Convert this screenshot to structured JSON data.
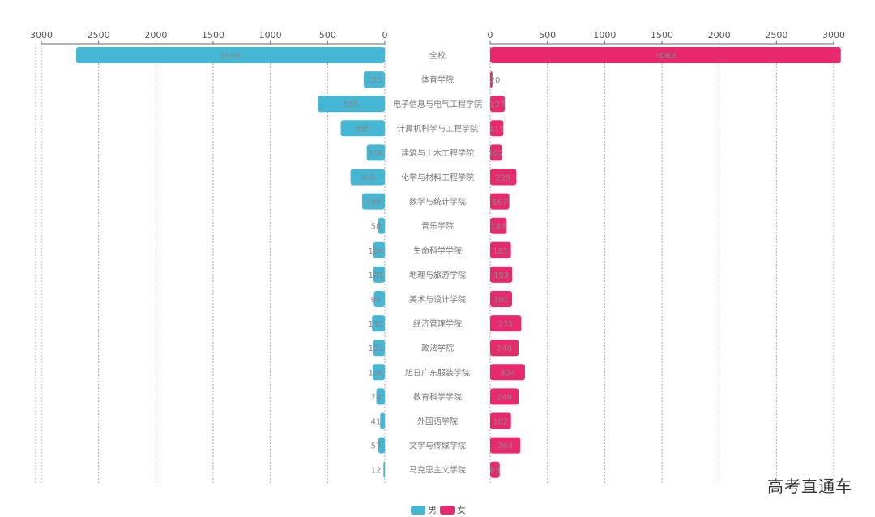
{
  "chart_data": {
    "type": "bar",
    "orientation": "horizontal-butterfly",
    "categories": [
      "全校",
      "体育学院",
      "电子信息与电气工程学院",
      "计算机科学与工程学院",
      "建筑与土木工程学院",
      "化学与材料工程学院",
      "数学与统计学院",
      "音乐学院",
      "生命科学学院",
      "地理与旅游学院",
      "美术与设计学院",
      "经济管理学院",
      "政法学院",
      "旭日广东服装学院",
      "教育科学学院",
      "外国语学院",
      "文学与传媒学院",
      "马克思主义学院"
    ],
    "series": [
      {
        "name": "男",
        "color": "#45b6d3",
        "values": [
          2696,
          185,
          585,
          385,
          158,
          300,
          198,
          58,
          100,
          101,
          96,
          112,
          102,
          106,
          74,
          41,
          57,
          12
        ]
      },
      {
        "name": "女",
        "color": "#e8296e",
        "values": [
          3062,
          20,
          127,
          115,
          102,
          229,
          167,
          143,
          181,
          193,
          191,
          271,
          248,
          304,
          249,
          182,
          264,
          83
        ]
      }
    ],
    "xlim": [
      0,
      3000
    ],
    "ticks": [
      0,
      500,
      1000,
      1500,
      2000,
      2500,
      3000
    ],
    "grid": true,
    "legend_position": "bottom-center"
  },
  "watermark": "高考直通车"
}
